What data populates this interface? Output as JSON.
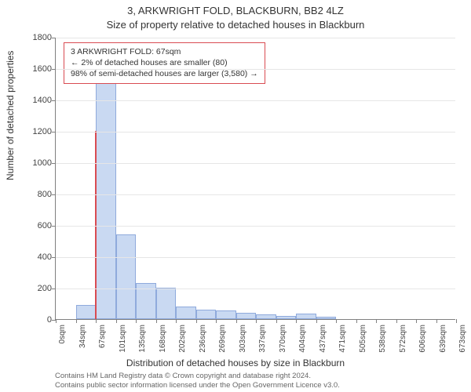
{
  "header": {
    "title": "3, ARKWRIGHT FOLD, BLACKBURN, BB2 4LZ",
    "subtitle": "Size of property relative to detached houses in Blackburn"
  },
  "axes": {
    "y_label": "Number of detached properties",
    "x_label": "Distribution of detached houses by size in Blackburn",
    "ylim_max": 1800,
    "ytick_step": 200,
    "yticks": [
      0,
      200,
      400,
      600,
      800,
      1000,
      1200,
      1400,
      1600,
      1800
    ],
    "xticks": [
      "0sqm",
      "34sqm",
      "67sqm",
      "101sqm",
      "135sqm",
      "168sqm",
      "202sqm",
      "236sqm",
      "269sqm",
      "303sqm",
      "337sqm",
      "370sqm",
      "404sqm",
      "437sqm",
      "471sqm",
      "505sqm",
      "538sqm",
      "572sqm",
      "606sqm",
      "639sqm",
      "673sqm"
    ]
  },
  "chart": {
    "type": "histogram",
    "bar_fill": "#c9d9f2",
    "bar_border": "#8faadc",
    "grid_color": "#e6e6e6",
    "axis_color": "#808080",
    "highlight_color": "#d94b52",
    "highlight_x_index": 2,
    "highlight_value": 1200,
    "values": [
      0,
      90,
      1650,
      540,
      230,
      200,
      80,
      60,
      55,
      40,
      30,
      20,
      35,
      15,
      0,
      0,
      0,
      0,
      0,
      0
    ]
  },
  "annotation": {
    "line1": "3 ARKWRIGHT FOLD: 67sqm",
    "line2": "← 2% of detached houses are smaller (80)",
    "line3": "98% of semi-detached houses are larger (3,580) →",
    "border_color": "#d94b52"
  },
  "footer": {
    "line1": "Contains HM Land Registry data © Crown copyright and database right 2024.",
    "line2": "Contains public sector information licensed under the Open Government Licence v3.0."
  },
  "style": {
    "background_color": "#ffffff",
    "title_fontsize": 13,
    "axis_label_fontsize": 12,
    "tick_fontsize": 11,
    "footer_color": "#666666"
  }
}
